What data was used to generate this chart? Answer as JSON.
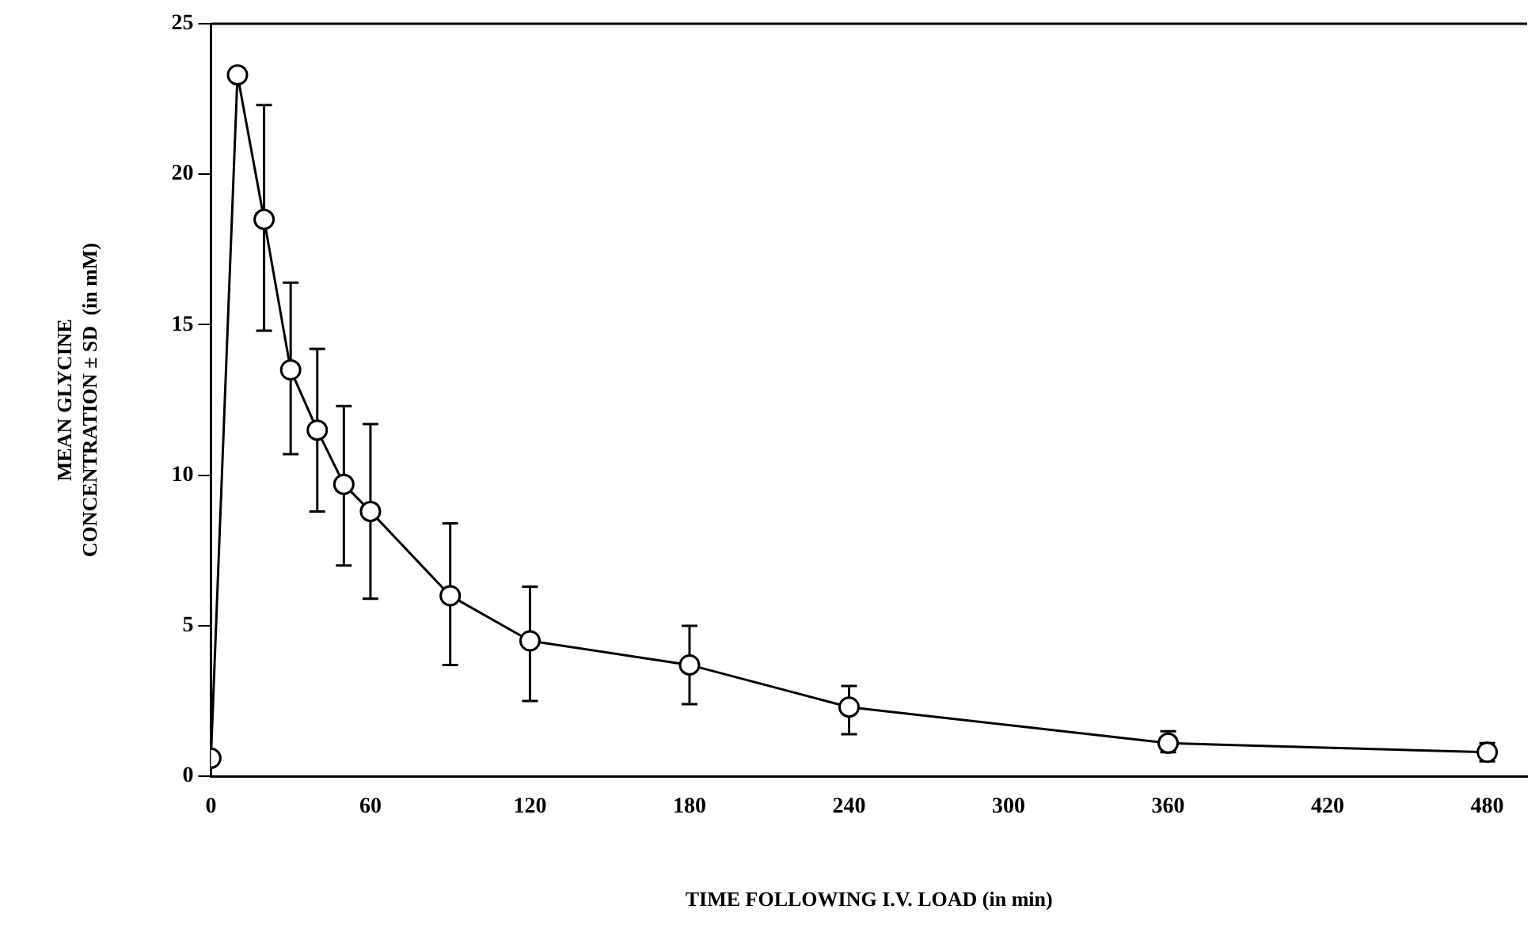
{
  "chart_data": {
    "type": "line",
    "xlabel": "TIME FOLLOWING I.V. LOAD (in min)",
    "ylabel": "MEAN GLYCINE\nCONCENTRATION ± SD  (in mM)",
    "x": [
      0,
      10,
      20,
      30,
      40,
      50,
      60,
      90,
      120,
      180,
      240,
      360,
      480
    ],
    "series": [
      {
        "color": "#000000",
        "values": [
          0.6,
          23.3,
          18.5,
          13.5,
          11.5,
          9.7,
          8.8,
          6.0,
          4.5,
          3.7,
          2.3,
          1.1,
          0.8
        ],
        "errors": [
          null,
          null,
          [
            14.8,
            22.3
          ],
          [
            10.7,
            16.4
          ],
          [
            8.8,
            14.2
          ],
          [
            7.0,
            12.3
          ],
          [
            5.9,
            11.7
          ],
          [
            3.7,
            8.4
          ],
          [
            2.5,
            6.3
          ],
          [
            2.4,
            5.0
          ],
          [
            1.4,
            3.0
          ],
          [
            0.8,
            1.5
          ],
          [
            0.5,
            1.1
          ]
        ]
      }
    ],
    "xlim": [
      0,
      495
    ],
    "xticks": [
      0,
      60,
      120,
      180,
      240,
      300,
      360,
      420,
      480
    ],
    "ylim": [
      0,
      25
    ],
    "yticks": [
      0,
      5,
      10,
      15,
      20,
      25
    ],
    "grid": false,
    "legend": false,
    "marker": "circle",
    "line_style": "solid"
  }
}
